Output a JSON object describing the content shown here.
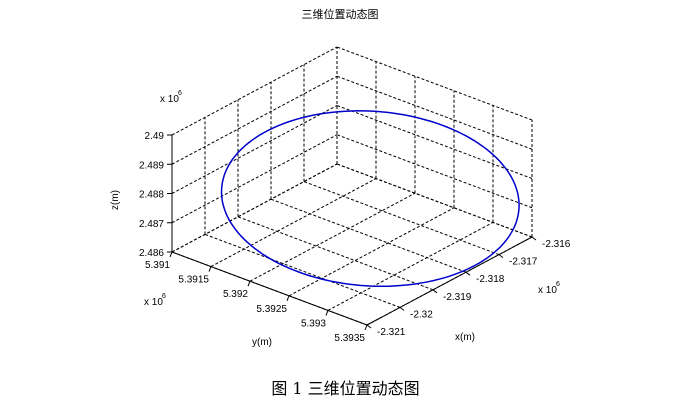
{
  "chart_data": {
    "type": "line3d",
    "title": "三维位置动态图",
    "xlabel": "x(m)",
    "ylabel": "y(m)",
    "zlabel": "z(m)",
    "x_scale_label": "x 10",
    "x_scale_exp": "6",
    "y_scale_label": "x 10",
    "y_scale_exp": "6",
    "z_scale_label": "x 10",
    "z_scale_exp": "6",
    "x_ticks": [
      "-2.321",
      "-2.32",
      "-2.319",
      "-2.318",
      "-2.317",
      "-2.316"
    ],
    "y_ticks": [
      "5.3935",
      "5.393",
      "5.3925",
      "5.392",
      "5.3915",
      "5.391"
    ],
    "z_ticks": [
      "2.486",
      "2.487",
      "2.488",
      "2.489",
      "2.49"
    ],
    "x_range": [
      -2.321,
      -2.316
    ],
    "y_range": [
      5.391,
      5.3935
    ],
    "z_range": [
      2.486,
      2.49
    ],
    "grid": true,
    "series": [
      {
        "color": "#0000cc",
        "shape": "ellipse",
        "center": {
          "x": -2.3183,
          "y": 5.3921,
          "z": 2.4876
        },
        "approx_extent": {
          "x": 0.003,
          "y": 0.0012,
          "z": 0.003
        }
      }
    ]
  },
  "caption": "图 1  三维位置动态图"
}
